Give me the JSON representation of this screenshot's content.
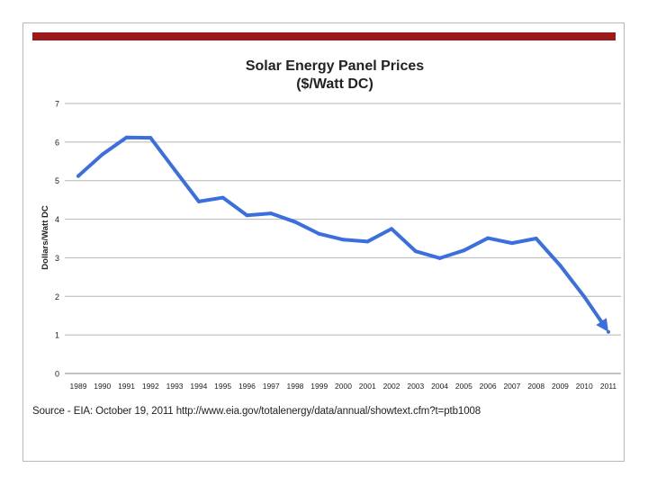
{
  "colors": {
    "accent_bar": "#9b1b1b",
    "line": "#3b6fe0",
    "grid": "#b5b5b5",
    "text": "#222222"
  },
  "chart_data": {
    "type": "line",
    "title": "Solar Energy Panel Prices",
    "subtitle": "($/Watt DC)",
    "xlabel": "",
    "ylabel": "Dollars/Watt DC",
    "ylim": [
      0,
      7
    ],
    "yticks": [
      0,
      1,
      2,
      3,
      4,
      5,
      6,
      7
    ],
    "grid": true,
    "categories": [
      "1989",
      "1990",
      "1991",
      "1992",
      "1993",
      "1994",
      "1995",
      "1996",
      "1997",
      "1998",
      "1999",
      "2000",
      "2001",
      "2002",
      "2003",
      "2004",
      "2005",
      "2006",
      "2007",
      "2008",
      "2009",
      "2010",
      "2011"
    ],
    "series": [
      {
        "name": "Price",
        "values": [
          5.12,
          5.68,
          6.12,
          6.11,
          5.28,
          4.46,
          4.56,
          4.1,
          4.15,
          3.93,
          3.62,
          3.47,
          3.42,
          3.75,
          3.17,
          2.99,
          3.19,
          3.51,
          3.38,
          3.5,
          2.8,
          1.99,
          1.08
        ]
      }
    ],
    "source": "Source - EIA: October 19, 2011 http://www.eia.gov/totalenergy/data/annual/showtext.cfm?t=ptb1008"
  }
}
